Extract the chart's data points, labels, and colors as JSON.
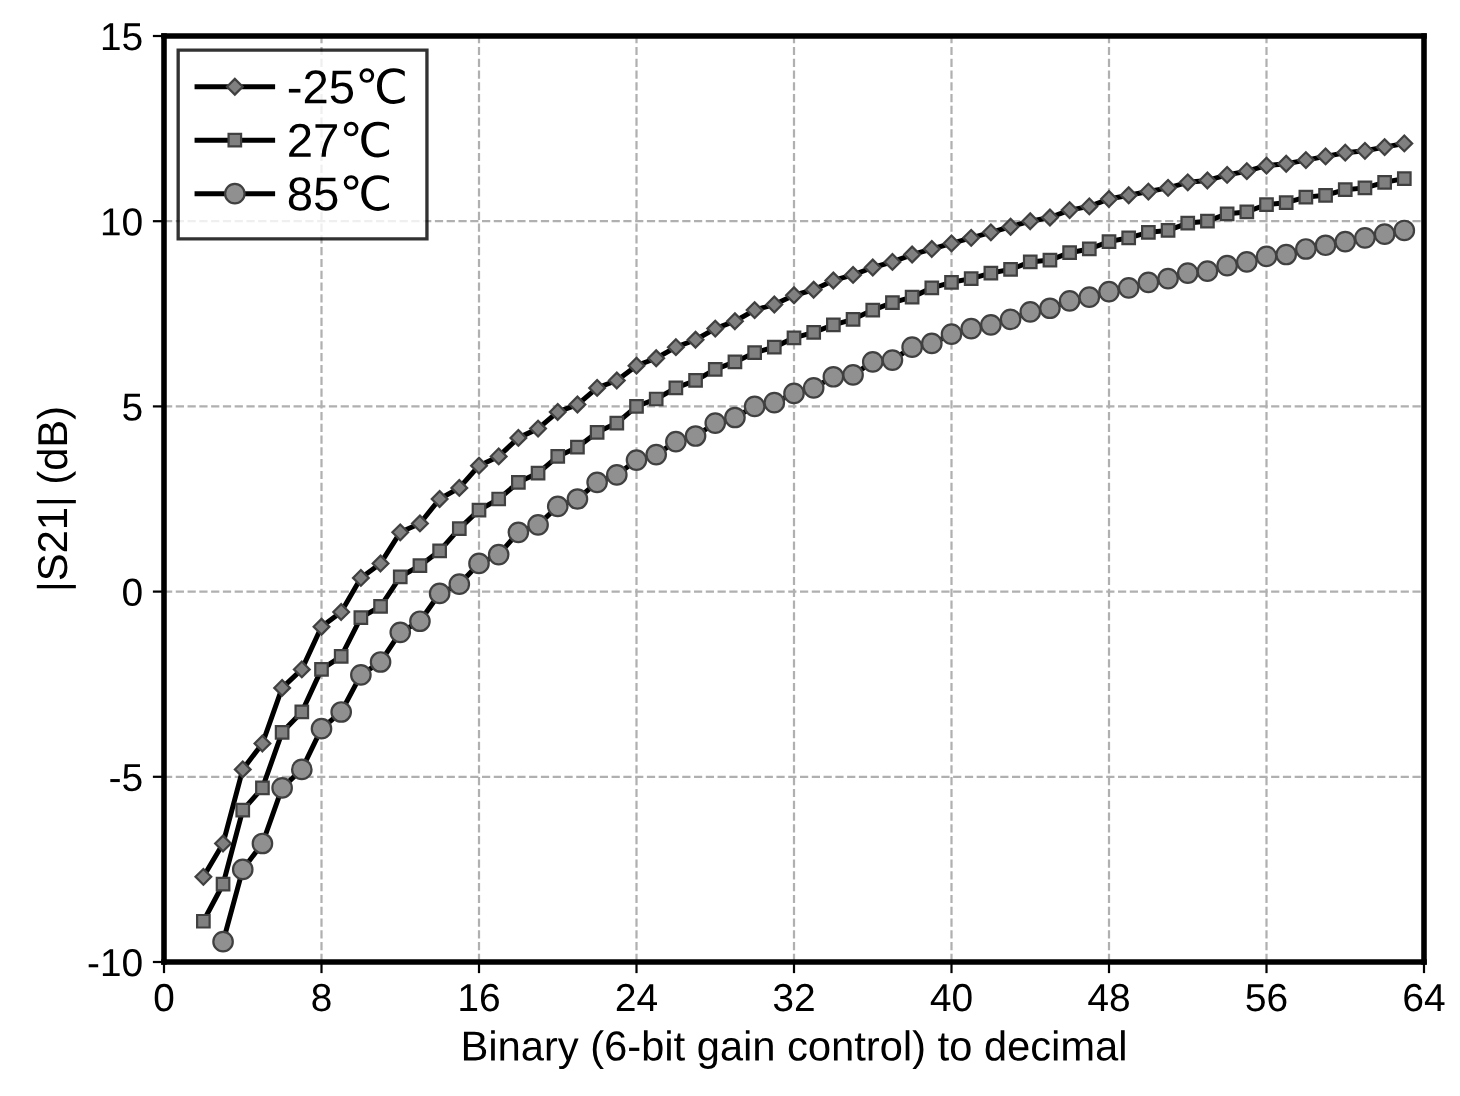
{
  "chart_data": {
    "type": "line",
    "xlabel": "Binary (6-bit gain control) to decimal",
    "ylabel": "|S21| (dB)",
    "xlim": [
      0,
      64
    ],
    "xticks": [
      0,
      8,
      16,
      24,
      32,
      40,
      48,
      56,
      64
    ],
    "ylim": [
      -10,
      15
    ],
    "yticks": [
      -10,
      -5,
      0,
      5,
      10,
      15
    ],
    "grid": true,
    "legend": "top left",
    "line_style": "solid",
    "series": [
      {
        "name": "-25℃",
        "color": "#808080",
        "marker": "diamond",
        "x": [
          2,
          3,
          4,
          5,
          6,
          7,
          8,
          9,
          10,
          11,
          12,
          13,
          14,
          15,
          16,
          17,
          18,
          19,
          20,
          21,
          22,
          23,
          24,
          25,
          26,
          27,
          28,
          29,
          30,
          31,
          32,
          33,
          34,
          35,
          36,
          37,
          38,
          39,
          40,
          41,
          42,
          43,
          44,
          45,
          46,
          47,
          48,
          49,
          50,
          51,
          52,
          53,
          54,
          55,
          56,
          57,
          58,
          59,
          60,
          61,
          62,
          63
        ],
        "values": [
          -7.7,
          -6.8,
          -4.8,
          -4.1,
          -2.6,
          -2.1,
          -0.95,
          -0.55,
          0.37,
          0.76,
          1.6,
          1.84,
          2.5,
          2.8,
          3.4,
          3.65,
          4.15,
          4.4,
          4.85,
          5.05,
          5.5,
          5.7,
          6.1,
          6.3,
          6.6,
          6.8,
          7.1,
          7.3,
          7.6,
          7.75,
          8.0,
          8.15,
          8.4,
          8.55,
          8.75,
          8.9,
          9.1,
          9.25,
          9.4,
          9.55,
          9.7,
          9.85,
          10.0,
          10.1,
          10.3,
          10.4,
          10.6,
          10.7,
          10.8,
          10.9,
          11.05,
          11.1,
          11.25,
          11.35,
          11.5,
          11.55,
          11.65,
          11.75,
          11.85,
          11.9,
          12.0,
          12.1
        ]
      },
      {
        "name": "27℃",
        "color": "#808080",
        "marker": "square",
        "x": [
          2,
          3,
          4,
          5,
          6,
          7,
          8,
          9,
          10,
          11,
          12,
          13,
          14,
          15,
          16,
          17,
          18,
          19,
          20,
          21,
          22,
          23,
          24,
          25,
          26,
          27,
          28,
          29,
          30,
          31,
          32,
          33,
          34,
          35,
          36,
          37,
          38,
          39,
          40,
          41,
          42,
          43,
          44,
          45,
          46,
          47,
          48,
          49,
          50,
          51,
          52,
          53,
          54,
          55,
          56,
          57,
          58,
          59,
          60,
          61,
          62,
          63
        ],
        "values": [
          -8.9,
          -7.9,
          -5.9,
          -5.3,
          -3.8,
          -3.25,
          -2.1,
          -1.75,
          -0.7,
          -0.4,
          0.4,
          0.7,
          1.1,
          1.7,
          2.2,
          2.5,
          2.95,
          3.2,
          3.65,
          3.9,
          4.3,
          4.55,
          5.0,
          5.2,
          5.5,
          5.7,
          6.0,
          6.2,
          6.45,
          6.6,
          6.85,
          7.0,
          7.2,
          7.35,
          7.6,
          7.8,
          7.95,
          8.2,
          8.35,
          8.45,
          8.6,
          8.7,
          8.9,
          8.95,
          9.15,
          9.25,
          9.45,
          9.55,
          9.7,
          9.75,
          9.95,
          10.0,
          10.2,
          10.25,
          10.45,
          10.5,
          10.65,
          10.7,
          10.85,
          10.9,
          11.05,
          11.15
        ]
      },
      {
        "name": "85℃",
        "color": "#909090",
        "marker": "circle",
        "x": [
          3,
          4,
          5,
          6,
          7,
          8,
          9,
          10,
          11,
          12,
          13,
          14,
          15,
          16,
          17,
          18,
          19,
          20,
          21,
          22,
          23,
          24,
          25,
          26,
          27,
          28,
          29,
          30,
          31,
          32,
          33,
          34,
          35,
          36,
          37,
          38,
          39,
          40,
          41,
          42,
          43,
          44,
          45,
          46,
          47,
          48,
          49,
          50,
          51,
          52,
          53,
          54,
          55,
          56,
          57,
          58,
          59,
          60,
          61,
          62,
          63
        ],
        "values": [
          -9.45,
          -7.5,
          -6.8,
          -5.3,
          -4.8,
          -3.7,
          -3.25,
          -2.25,
          -1.9,
          -1.1,
          -0.8,
          -0.05,
          0.2,
          0.76,
          1.0,
          1.6,
          1.8,
          2.3,
          2.5,
          2.95,
          3.15,
          3.55,
          3.7,
          4.05,
          4.2,
          4.55,
          4.7,
          5.0,
          5.1,
          5.35,
          5.5,
          5.8,
          5.85,
          6.2,
          6.25,
          6.6,
          6.7,
          6.95,
          7.1,
          7.2,
          7.35,
          7.55,
          7.65,
          7.85,
          7.95,
          8.1,
          8.2,
          8.35,
          8.45,
          8.6,
          8.65,
          8.8,
          8.9,
          9.05,
          9.1,
          9.25,
          9.35,
          9.45,
          9.55,
          9.65,
          9.75
        ]
      }
    ]
  }
}
